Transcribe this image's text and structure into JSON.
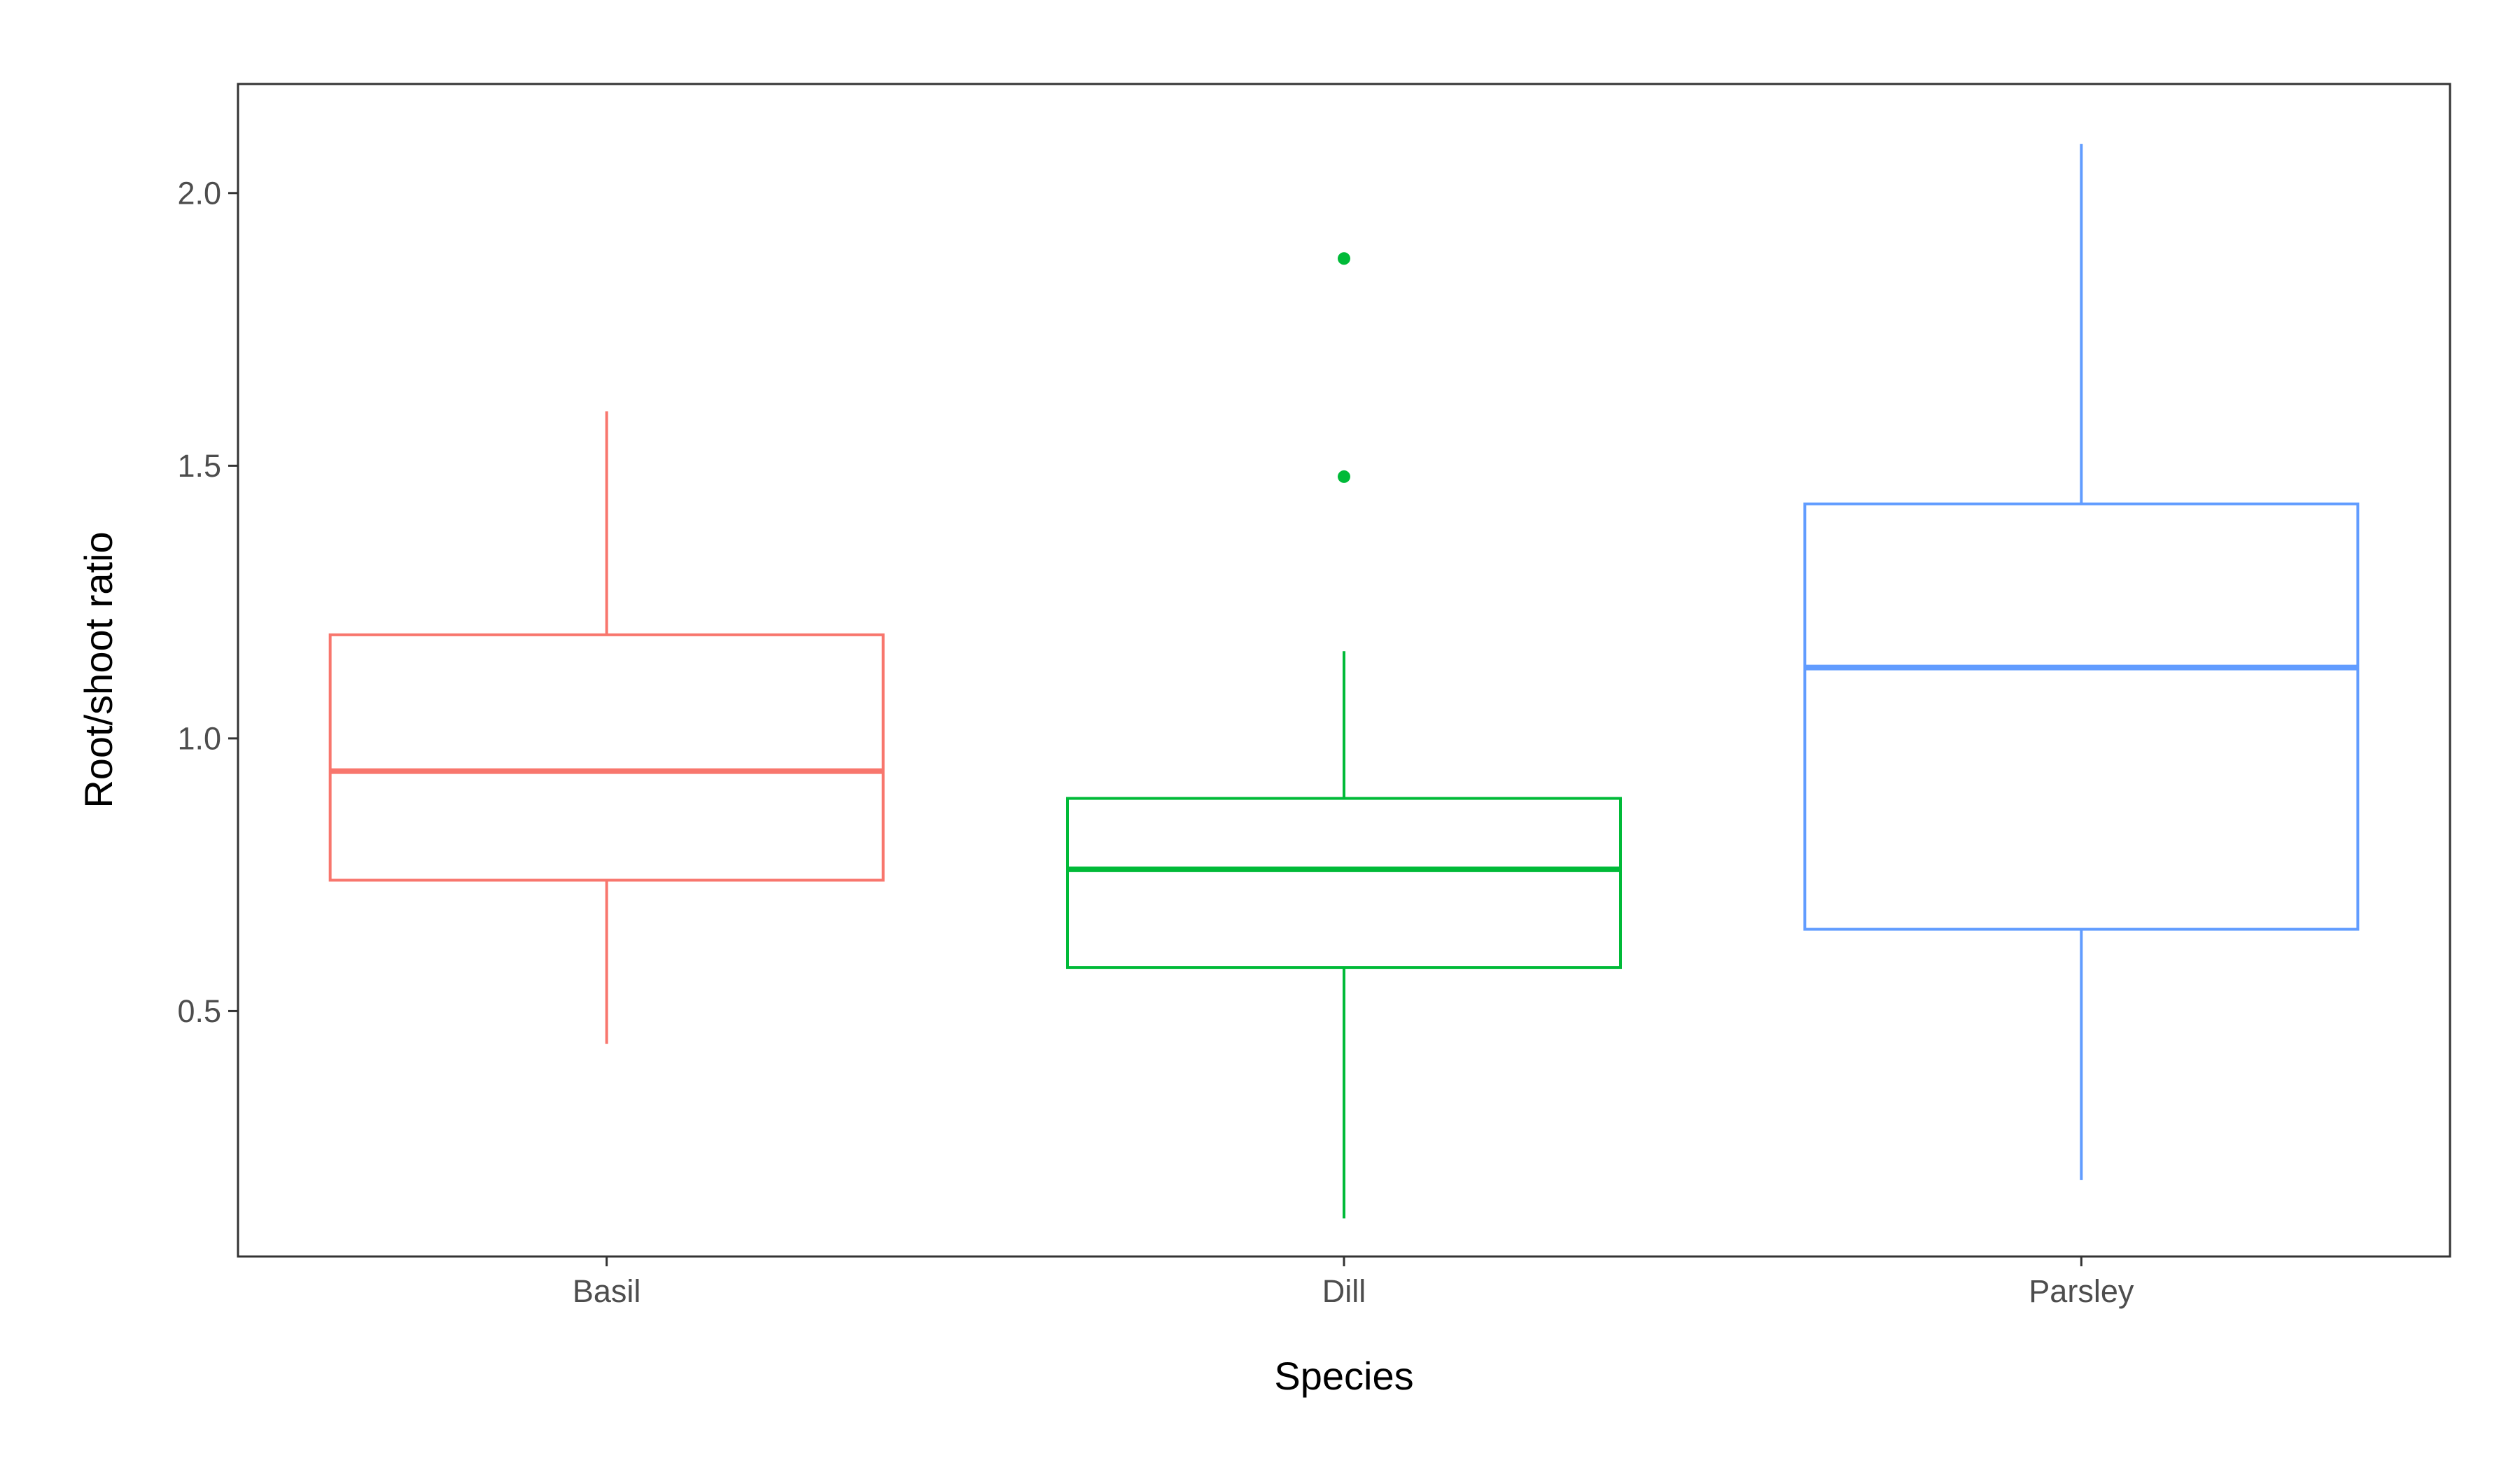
{
  "chart_data": {
    "type": "boxplot",
    "title": "",
    "xlabel": "Species",
    "ylabel": "Root/shoot ratio",
    "ylim": [
      0.05,
      2.2
    ],
    "yticks": [
      0.5,
      1.0,
      1.5,
      2.0
    ],
    "ytick_labels": [
      "0.5",
      "1.0",
      "1.5",
      "2.0"
    ],
    "grid": false,
    "legend": "none",
    "categories": [
      "Basil",
      "Dill",
      "Parsley"
    ],
    "series": [
      {
        "category": "Basil",
        "color": "#F8766D",
        "whisker_low": 0.44,
        "q1": 0.74,
        "median": 0.94,
        "q3": 1.19,
        "whisker_high": 1.6,
        "outliers": []
      },
      {
        "category": "Dill",
        "color": "#00BA38",
        "whisker_low": 0.12,
        "q1": 0.58,
        "median": 0.76,
        "q3": 0.89,
        "whisker_high": 1.16,
        "outliers": [
          1.48,
          1.88
        ]
      },
      {
        "category": "Parsley",
        "color": "#619CFF",
        "whisker_low": 0.19,
        "q1": 0.65,
        "median": 1.13,
        "q3": 1.43,
        "whisker_high": 2.09,
        "outliers": []
      }
    ]
  }
}
